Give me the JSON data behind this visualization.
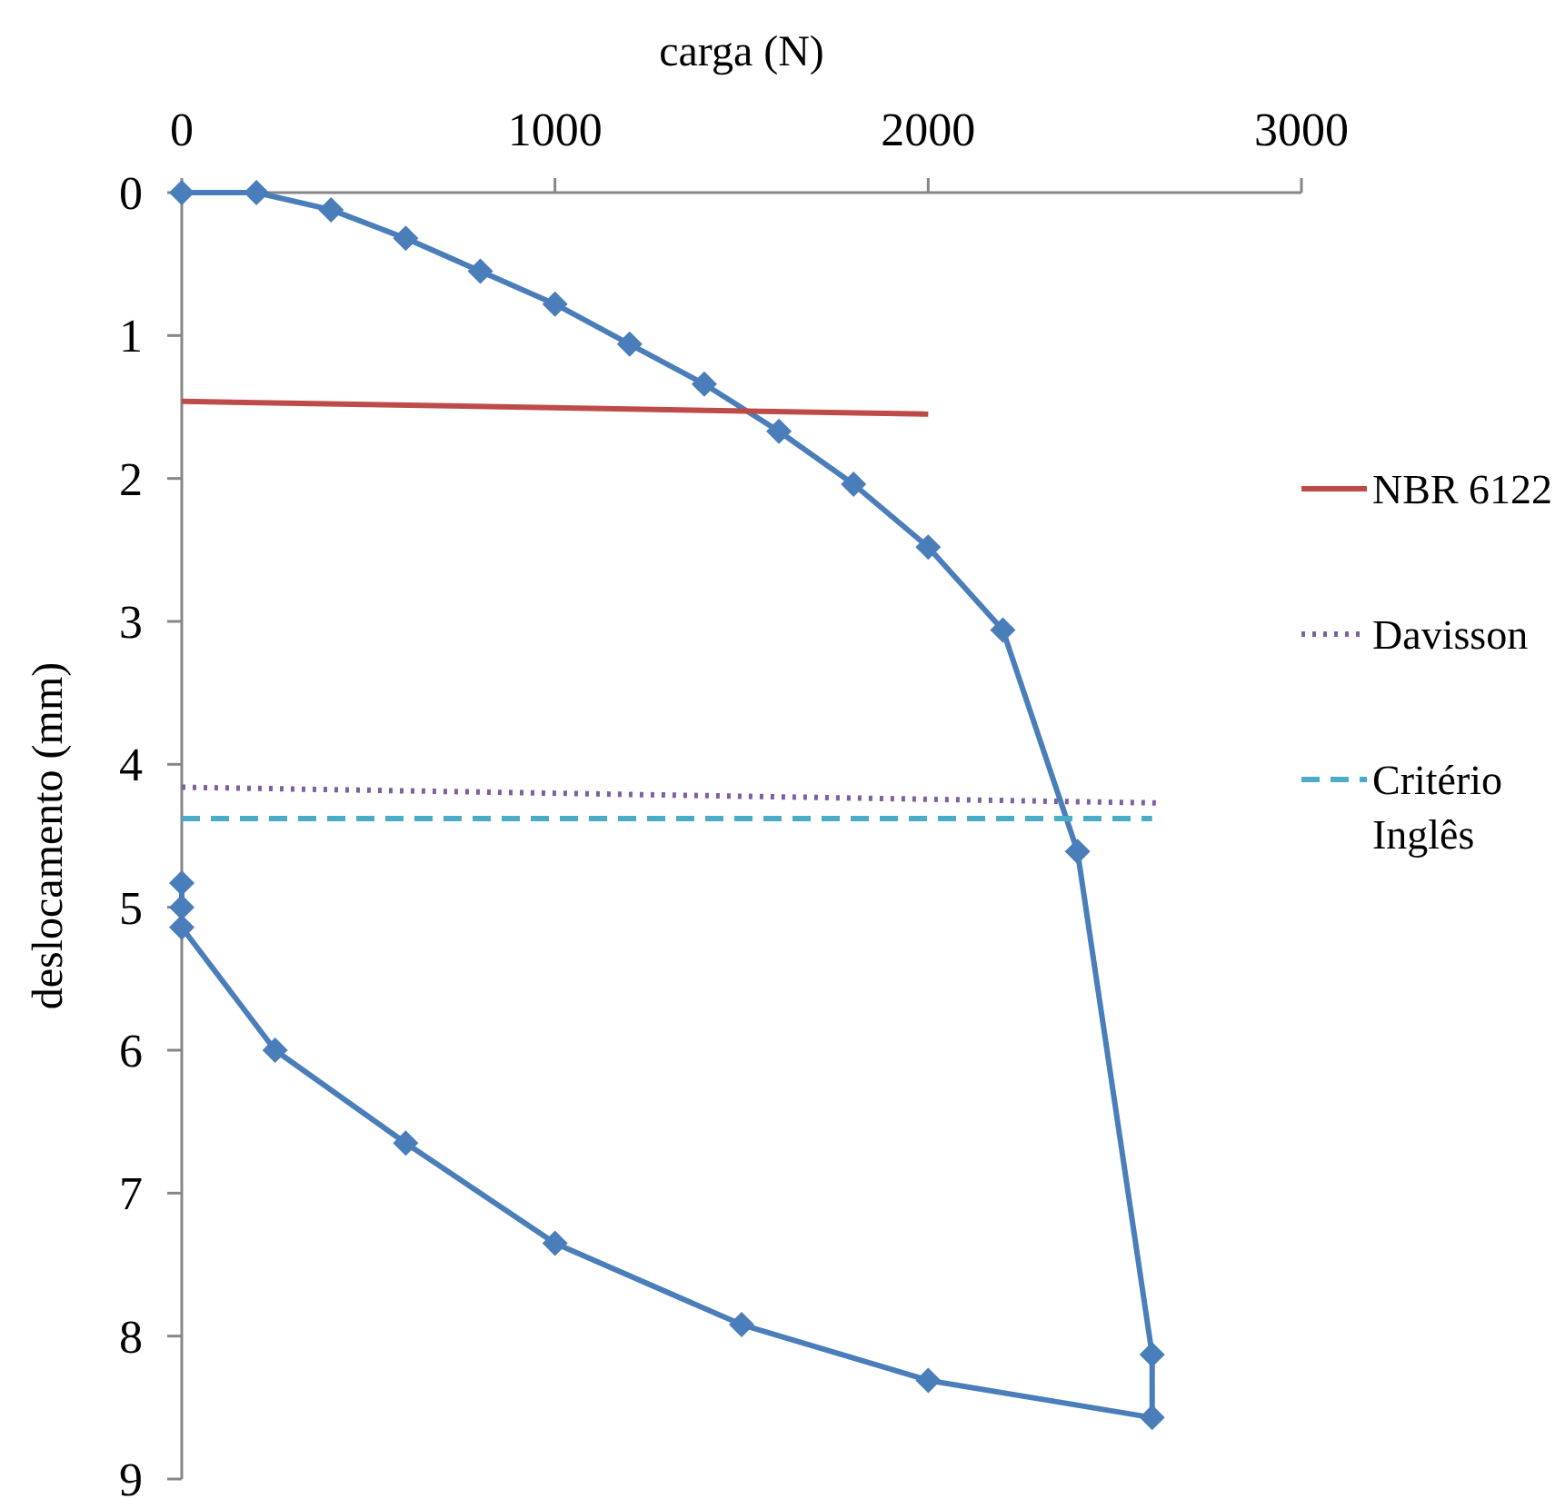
{
  "chart_data": {
    "type": "line",
    "xlabel": "carga (N)",
    "ylabel": "deslocamento (mm)",
    "xlim": [
      0,
      3000
    ],
    "xticks": [
      0,
      1000,
      2000,
      3000
    ],
    "ylim": [
      9,
      0
    ],
    "yticks": [
      0,
      1,
      2,
      3,
      4,
      5,
      6,
      7,
      8,
      9
    ],
    "grid": false,
    "legend": "right",
    "line_style": "solid",
    "series": [
      {
        "color": "#4a7ebb",
        "marker": "diamond",
        "x": [
          0,
          200,
          400,
          600,
          800,
          1000,
          1200,
          1400,
          1600,
          1800,
          2000,
          2200,
          2400,
          2600,
          2600,
          2000,
          1500,
          1000,
          600,
          250,
          0,
          0,
          0
        ],
        "values": [
          0,
          0,
          0.12,
          0.32,
          0.55,
          0.78,
          1.06,
          1.34,
          1.67,
          2.04,
          2.48,
          3.06,
          4.61,
          8.13,
          8.57,
          8.31,
          7.92,
          7.35,
          6.65,
          6.0,
          5.14,
          5.0,
          4.83
        ]
      },
      {
        "name": "NBR 6122",
        "color": "#be4b48",
        "marker": "none",
        "line_style": "solid",
        "x": [
          0,
          2000
        ],
        "values": [
          1.46,
          1.55
        ]
      },
      {
        "name": "Davisson",
        "color": "#7d60a0",
        "marker": "none",
        "line_style": "dotted",
        "x": [
          0,
          2610
        ],
        "values": [
          4.16,
          4.27
        ]
      },
      {
        "name": "Critério Inglês",
        "color": "#4bacc6",
        "marker": "none",
        "line_style": "dashed",
        "x": [
          0,
          2600
        ],
        "values": [
          4.38,
          4.38
        ]
      }
    ]
  }
}
